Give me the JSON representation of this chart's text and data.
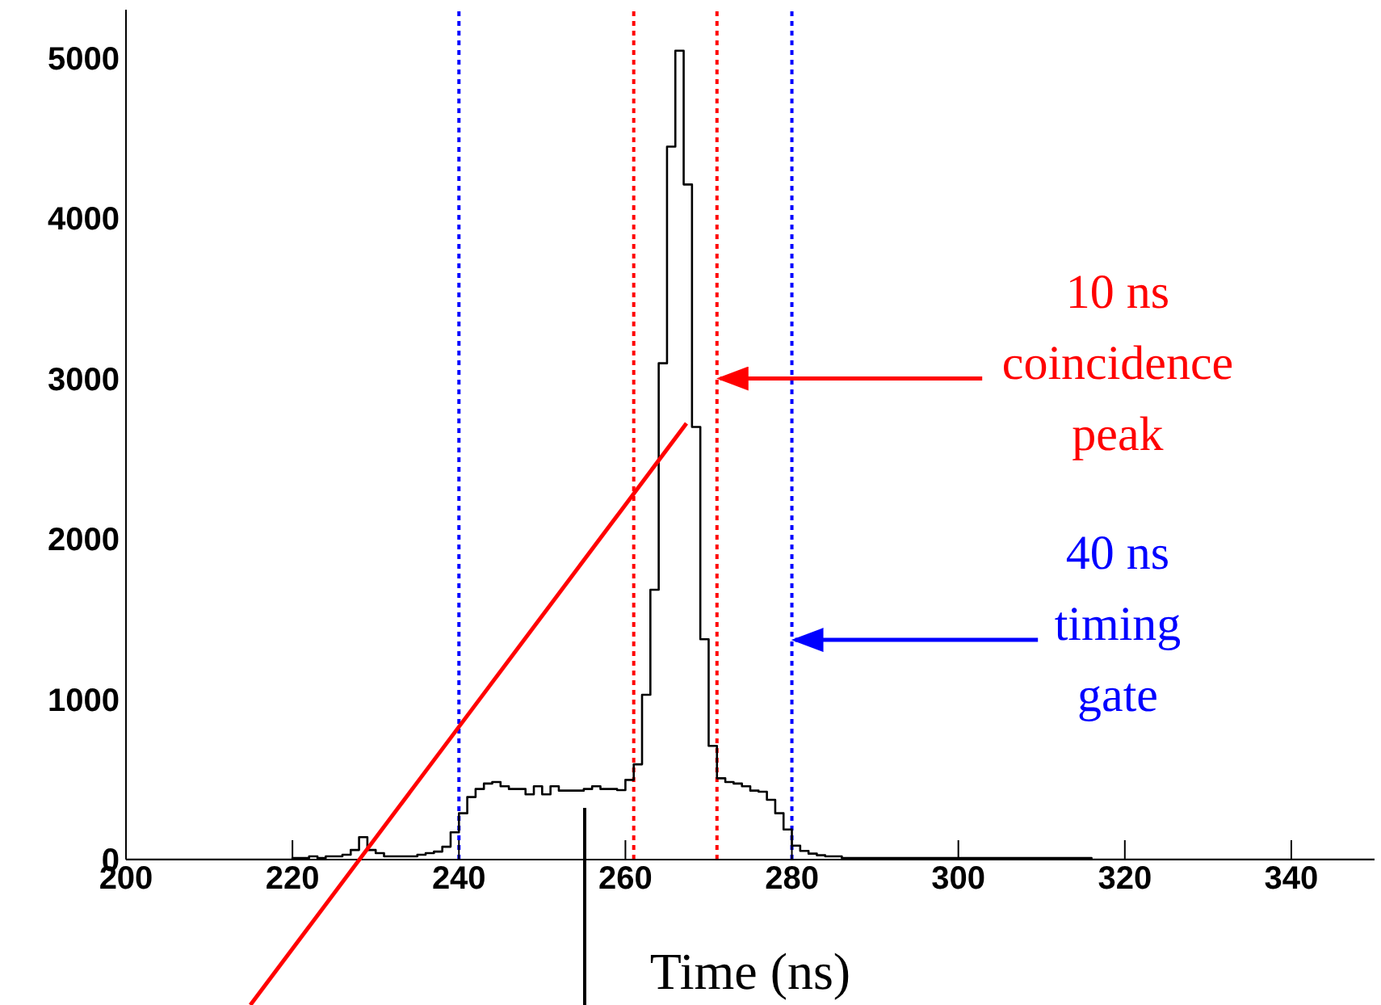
{
  "chart_data": {
    "type": "histogram",
    "xlabel": "Time (ns)",
    "bins": [
      200,
      201,
      202,
      203,
      204,
      205,
      206,
      207,
      208,
      209,
      210,
      211,
      212,
      213,
      214,
      215,
      216,
      217,
      218,
      219,
      220,
      221,
      222,
      223,
      224,
      225,
      226,
      227,
      228,
      229,
      230,
      231,
      232,
      233,
      234,
      235,
      236,
      237,
      238,
      239,
      240,
      241,
      242,
      243,
      244,
      245,
      246,
      247,
      248,
      249,
      250,
      251,
      252,
      253,
      254,
      255,
      256,
      257,
      258,
      259,
      260,
      261,
      262,
      263,
      264,
      265,
      266,
      267,
      268,
      269,
      270,
      271,
      272,
      273,
      274,
      275,
      276,
      277,
      278,
      279,
      280,
      281,
      282,
      283,
      284,
      285,
      286,
      287,
      288,
      289,
      290,
      291,
      292,
      293,
      294,
      295,
      296,
      297,
      298,
      299,
      300,
      301,
      302,
      303,
      304,
      305,
      306,
      307,
      308,
      309,
      310,
      311,
      312,
      313,
      314,
      315,
      316,
      317,
      318,
      319,
      320,
      321,
      322,
      323,
      324,
      325,
      326,
      327,
      328,
      329,
      330,
      331,
      332,
      333,
      334,
      335,
      336,
      337,
      338,
      339,
      340,
      341,
      342,
      343,
      344,
      345,
      346,
      347,
      348,
      349,
      350
    ],
    "values": [
      0,
      0,
      0,
      0,
      0,
      0,
      0,
      0,
      0,
      0,
      0,
      0,
      0,
      0,
      0,
      0,
      0,
      0,
      0,
      0,
      10,
      10,
      20,
      10,
      20,
      20,
      30,
      60,
      140,
      60,
      40,
      20,
      20,
      20,
      20,
      30,
      40,
      50,
      80,
      170,
      289,
      390,
      440,
      474,
      484,
      457,
      440,
      440,
      407,
      457,
      407,
      457,
      430,
      430,
      430,
      440,
      457,
      440,
      440,
      433,
      497,
      594,
      1028,
      1683,
      3095,
      4446,
      5044,
      4210,
      2698,
      1374,
      709,
      507,
      484,
      474,
      457,
      430,
      423,
      373,
      289,
      188,
      87,
      54,
      37,
      27,
      20,
      20,
      10,
      10,
      10,
      10,
      10,
      10,
      10,
      10,
      10,
      10,
      10,
      10,
      10,
      10,
      10,
      10,
      10,
      10,
      10,
      10,
      10,
      10,
      10,
      10,
      10,
      10,
      10,
      10,
      10,
      10,
      0,
      0,
      0,
      0,
      0,
      0,
      0,
      0,
      0,
      0,
      0,
      0,
      0,
      0,
      0,
      0,
      0,
      0,
      0,
      0,
      0,
      0,
      0,
      0,
      0,
      0,
      0,
      0,
      0,
      0,
      0,
      0,
      0,
      0
    ],
    "color": "#000000",
    "xlim": [
      200,
      350
    ],
    "xticks": [
      200,
      220,
      240,
      260,
      280,
      300,
      320,
      340
    ],
    "ylim": [
      0,
      5300
    ],
    "yticks": [
      0,
      1000,
      2000,
      3000,
      4000,
      5000
    ],
    "grid": false,
    "legend": false,
    "ref_lines": [
      {
        "axis": "x",
        "value": 240,
        "color": "#0000ff",
        "line_style": "dotted"
      },
      {
        "axis": "x",
        "value": 261,
        "color": "#ff0000",
        "line_style": "dotted"
      },
      {
        "axis": "x",
        "value": 271,
        "color": "#ff0000",
        "line_style": "dotted"
      },
      {
        "axis": "x",
        "value": 280,
        "color": "#0000ff",
        "line_style": "dotted"
      }
    ],
    "annotations": [
      {
        "text": "10 ns\ncoincidence\npeak",
        "x": 271,
        "y": 3000
      },
      {
        "text": "40 ns\ntiming\ngate",
        "x": 280,
        "y": 1370
      }
    ]
  }
}
